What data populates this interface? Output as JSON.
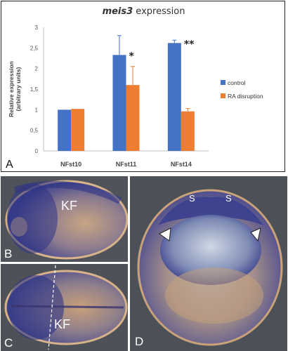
{
  "chart_data": {
    "type": "bar",
    "title_gene": "meis3",
    "title_rest": " expression",
    "ylabel_line1": "Relative expression",
    "ylabel_line2": "(arbitrary units)",
    "xlabel": "",
    "ylim": [
      0,
      3
    ],
    "yticks": [
      "0",
      "0,5",
      "1",
      "1,5",
      "2",
      "2,5",
      "3"
    ],
    "categories": [
      "NFst10",
      "NFst11",
      "NFst14"
    ],
    "series": [
      {
        "name": "control",
        "color": "#4472c4",
        "values": [
          1.0,
          2.33,
          2.62
        ],
        "errors": [
          0.0,
          0.47,
          0.07
        ]
      },
      {
        "name": "RA disruption",
        "color": "#ed7d31",
        "values": [
          1.02,
          1.6,
          0.96
        ],
        "errors": [
          0.0,
          0.45,
          0.07
        ]
      }
    ],
    "annotations": [
      "*",
      "**"
    ],
    "legend_position": "right",
    "grid": false
  },
  "labels": {
    "panel_a": "A",
    "panel_b": "B",
    "panel_c": "C",
    "panel_d": "D",
    "kf_b": "KF",
    "kf_c": "KF",
    "s_left": "S",
    "s_right": "S"
  },
  "colors": {
    "embryo_background": "#4b4f55",
    "stain_blue": "#3b3f8f",
    "tissue_tan": "#c9a27a"
  }
}
